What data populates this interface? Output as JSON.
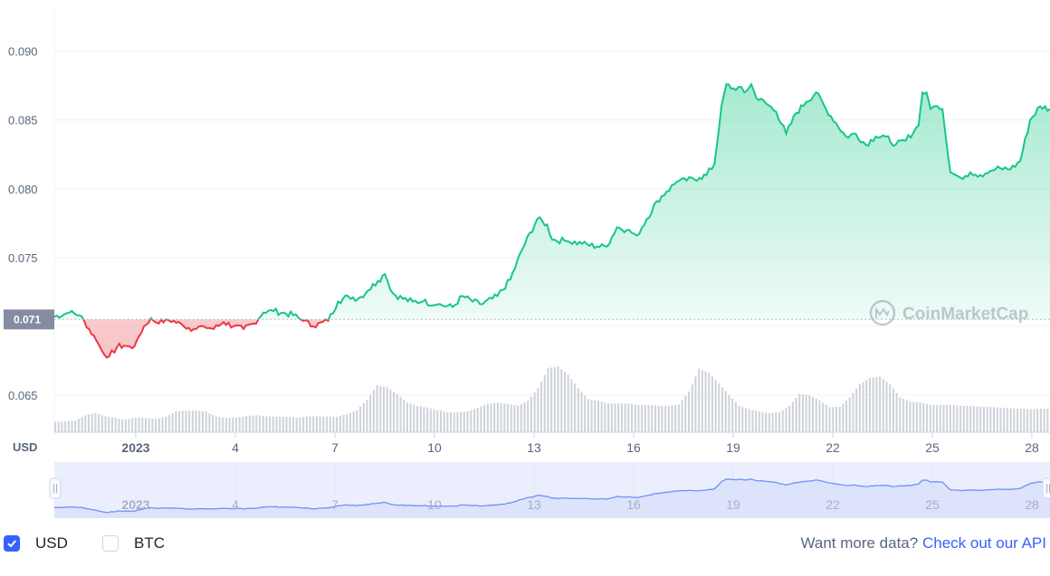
{
  "chart_data": {
    "type": "area",
    "price_series_name": "",
    "y_ticks": [
      "0.090",
      "0.085",
      "0.080",
      "0.075",
      "0.065"
    ],
    "ylim": [
      0.0623,
      0.0932
    ],
    "x_ticks": [
      "2023",
      "4",
      "7",
      "10",
      "13",
      "16",
      "19",
      "22",
      "25",
      "28"
    ],
    "xlim": [
      0,
      100
    ],
    "y_axis_label": "USD",
    "reference_price": 0.0705,
    "reference_label": "0.071",
    "watermark": "CoinMarketCap",
    "price_points": [
      [
        0,
        0.0707
      ],
      [
        1.5,
        0.071
      ],
      [
        2.5,
        0.0708
      ],
      [
        3,
        0.0704
      ],
      [
        3.5,
        0.0698
      ],
      [
        4.2,
        0.069
      ],
      [
        4.8,
        0.0682
      ],
      [
        5.5,
        0.0678
      ],
      [
        6.3,
        0.0685
      ],
      [
        7,
        0.0686
      ],
      [
        7.8,
        0.0684
      ],
      [
        8.3,
        0.069
      ],
      [
        9,
        0.07
      ],
      [
        9.7,
        0.0706
      ],
      [
        10.5,
        0.0702
      ],
      [
        11.2,
        0.0705
      ],
      [
        12,
        0.0704
      ],
      [
        13,
        0.07
      ],
      [
        14,
        0.0698
      ],
      [
        15,
        0.07
      ],
      [
        16,
        0.0698
      ],
      [
        17,
        0.0703
      ],
      [
        18,
        0.07
      ],
      [
        19,
        0.0698
      ],
      [
        20,
        0.0702
      ],
      [
        21,
        0.071
      ],
      [
        22,
        0.0711
      ],
      [
        23,
        0.071
      ],
      [
        24,
        0.0708
      ],
      [
        25,
        0.0704
      ],
      [
        26,
        0.07
      ],
      [
        27.5,
        0.0704
      ],
      [
        28.5,
        0.0718
      ],
      [
        29.5,
        0.0722
      ],
      [
        30.5,
        0.072
      ],
      [
        31.5,
        0.0726
      ],
      [
        32.5,
        0.0733
      ],
      [
        33.2,
        0.0738
      ],
      [
        34,
        0.0724
      ],
      [
        35,
        0.072
      ],
      [
        36,
        0.0718
      ],
      [
        37,
        0.0718
      ],
      [
        38.5,
        0.0716
      ],
      [
        40,
        0.0714
      ],
      [
        41,
        0.0722
      ],
      [
        42,
        0.0718
      ],
      [
        43,
        0.0716
      ],
      [
        44.5,
        0.0722
      ],
      [
        45.8,
        0.0734
      ],
      [
        47,
        0.0756
      ],
      [
        48.5,
        0.0778
      ],
      [
        49.5,
        0.0774
      ],
      [
        50,
        0.0763
      ],
      [
        51.5,
        0.0762
      ],
      [
        53,
        0.076
      ],
      [
        54.5,
        0.0758
      ],
      [
        55.5,
        0.0758
      ],
      [
        56.5,
        0.0772
      ],
      [
        57.5,
        0.077
      ],
      [
        58.5,
        0.0766
      ],
      [
        59.5,
        0.0778
      ],
      [
        60.5,
        0.0791
      ],
      [
        61.5,
        0.0798
      ],
      [
        62.5,
        0.0805
      ],
      [
        63.5,
        0.0806
      ],
      [
        64.8,
        0.0808
      ],
      [
        65.5,
        0.081
      ],
      [
        66.3,
        0.0818
      ],
      [
        67,
        0.086
      ],
      [
        67.5,
        0.0876
      ],
      [
        68.2,
        0.0873
      ],
      [
        68.7,
        0.0874
      ],
      [
        69.3,
        0.087
      ],
      [
        70,
        0.0876
      ],
      [
        70.5,
        0.0866
      ],
      [
        71.5,
        0.0862
      ],
      [
        72.5,
        0.0856
      ],
      [
        73.5,
        0.084
      ],
      [
        74.5,
        0.0855
      ],
      [
        75.5,
        0.0863
      ],
      [
        76.5,
        0.087
      ],
      [
        77.5,
        0.0858
      ],
      [
        78.5,
        0.0848
      ],
      [
        79.5,
        0.0838
      ],
      [
        80.5,
        0.084
      ],
      [
        81.5,
        0.0832
      ],
      [
        82.5,
        0.0838
      ],
      [
        83.5,
        0.0838
      ],
      [
        84.5,
        0.0832
      ],
      [
        85.5,
        0.0835
      ],
      [
        86.8,
        0.0846
      ],
      [
        87.2,
        0.087
      ],
      [
        87.6,
        0.087
      ],
      [
        88,
        0.0858
      ],
      [
        88.7,
        0.086
      ],
      [
        89.2,
        0.0858
      ],
      [
        90,
        0.0812
      ],
      [
        91,
        0.0808
      ],
      [
        92,
        0.0812
      ],
      [
        93,
        0.081
      ],
      [
        94,
        0.0813
      ],
      [
        95,
        0.0815
      ],
      [
        96,
        0.0814
      ],
      [
        97,
        0.082
      ],
      [
        98,
        0.085
      ],
      [
        99,
        0.086
      ],
      [
        100,
        0.0858
      ]
    ],
    "volume_levels": [
      0.22,
      0.23,
      0.25,
      0.36,
      0.41,
      0.34,
      0.3,
      0.27,
      0.31,
      0.3,
      0.28,
      0.33,
      0.44,
      0.46,
      0.46,
      0.44,
      0.33,
      0.31,
      0.31,
      0.34,
      0.36,
      0.34,
      0.33,
      0.33,
      0.31,
      0.33,
      0.34,
      0.33,
      0.33,
      0.38,
      0.47,
      0.69,
      1.0,
      0.95,
      0.81,
      0.63,
      0.56,
      0.52,
      0.47,
      0.42,
      0.42,
      0.44,
      0.52,
      0.6,
      0.63,
      0.6,
      0.56,
      0.67,
      0.93,
      1.36,
      1.4,
      1.22,
      0.93,
      0.7,
      0.67,
      0.61,
      0.61,
      0.61,
      0.58,
      0.58,
      0.56,
      0.56,
      0.59,
      0.86,
      1.34,
      1.26,
      1.03,
      0.79,
      0.56,
      0.49,
      0.44,
      0.4,
      0.42,
      0.56,
      0.81,
      0.78,
      0.68,
      0.53,
      0.54,
      0.74,
      1.02,
      1.15,
      1.18,
      1.02,
      0.74,
      0.65,
      0.63,
      0.58,
      0.58,
      0.58,
      0.56,
      0.56,
      0.54,
      0.54,
      0.52,
      0.51,
      0.5,
      0.49,
      0.5
    ],
    "navigator": {
      "x_ticks": [
        "2023",
        "4",
        "7",
        "10",
        "13",
        "16",
        "19",
        "22",
        "25",
        "28"
      ]
    }
  },
  "footer": {
    "usd_label": "USD",
    "btc_label": "BTC",
    "usd_checked": true,
    "btc_checked": false,
    "more_text": "Want more data?",
    "api_link": "Check out our API"
  },
  "colors": {
    "up": "#16c784",
    "down": "#ea3943",
    "axis_text": "#58667e",
    "navigator_line": "#3861fb",
    "volume_bar": "#c6cad3"
  }
}
